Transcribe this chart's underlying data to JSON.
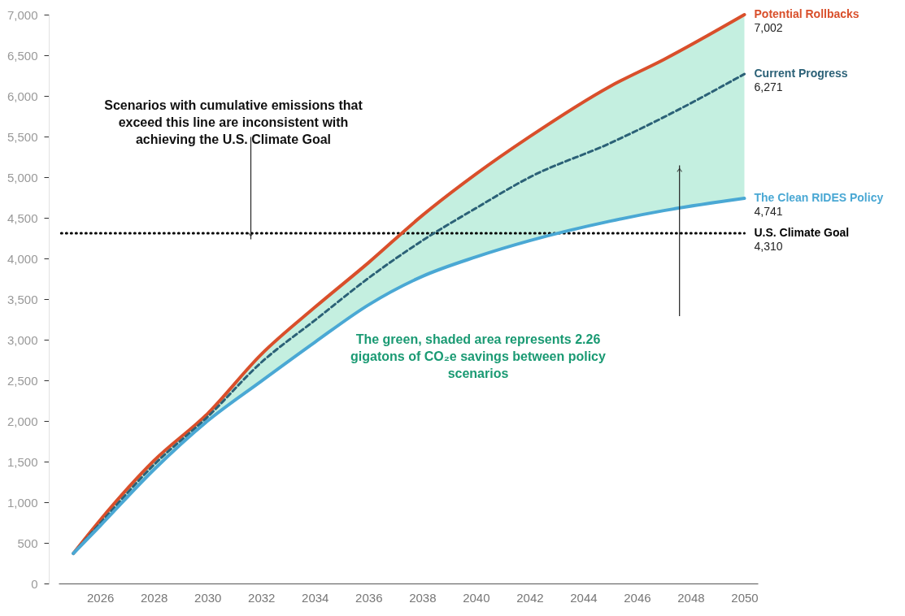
{
  "chart_data": {
    "type": "line",
    "x": [
      2025,
      2026,
      2028,
      2030,
      2032,
      2034,
      2036,
      2038,
      2040,
      2042,
      2045,
      2047,
      2050
    ],
    "series": [
      {
        "name": "Potential Rollbacks",
        "color": "#d94f2b",
        "line_style": "solid",
        "values": [
          370,
          780,
          1510,
          2090,
          2820,
          3400,
          3950,
          4530,
          5040,
          5500,
          6120,
          6450,
          7002
        ],
        "value_labels": [
          null,
          null,
          null,
          null,
          null,
          null,
          null,
          null,
          null,
          null,
          null,
          null,
          "7,002"
        ]
      },
      {
        "name": "Current Progress",
        "color": "#2b6177",
        "line_style": "dashed",
        "values": [
          370,
          740,
          1460,
          2050,
          2720,
          3240,
          3760,
          4220,
          4620,
          5000,
          5420,
          5740,
          6271
        ],
        "value_labels": [
          null,
          null,
          null,
          null,
          null,
          null,
          null,
          null,
          null,
          null,
          null,
          null,
          "6,271"
        ]
      },
      {
        "name": "The Clean RIDES Policy",
        "color": "#4aa8d4",
        "line_style": "solid",
        "values": [
          370,
          710,
          1400,
          2000,
          2490,
          2970,
          3430,
          3780,
          4020,
          4220,
          4460,
          4590,
          4741
        ],
        "value_labels": [
          null,
          null,
          null,
          null,
          null,
          null,
          null,
          null,
          null,
          null,
          null,
          null,
          "4,741"
        ]
      }
    ],
    "xlim": [
      2024.45,
      2050.5
    ],
    "xticks": [
      2026,
      2028,
      2030,
      2032,
      2034,
      2036,
      2038,
      2040,
      2042,
      2044,
      2046,
      2048,
      2050
    ],
    "ylim": [
      0,
      7002
    ],
    "yticks": [
      0,
      500,
      {
        "value": 1000,
        "label": "1,000"
      },
      {
        "value": 1500,
        "label": "1,500"
      },
      {
        "value": 2000,
        "label": "2,000"
      },
      {
        "value": 2500,
        "label": "2,500"
      },
      {
        "value": 3000,
        "label": "3,000"
      },
      {
        "value": 3500,
        "label": "3,500"
      },
      {
        "value": 4000,
        "label": "4,000"
      },
      {
        "value": 4500,
        "label": "4,500"
      },
      {
        "value": 5000,
        "label": "5,000"
      },
      {
        "value": 5500,
        "label": "5,500"
      },
      {
        "value": 6000,
        "label": "6,000"
      },
      {
        "value": 6500,
        "label": "6,500"
      },
      {
        "value": 7000,
        "label": "7,000"
      }
    ],
    "grid": false,
    "legend": false,
    "marker": "none",
    "ref_lines": [
      {
        "axis": "y",
        "value": 4310,
        "label": "U.S. Climate Goal",
        "color": "#000000",
        "line_style": "dotted"
      }
    ],
    "annotations": [
      "Scenarios with cumulative emissions that exceed this line are inconsistent with achieving the U.S. Climate Goal",
      "The green, shaded area represents 2.26 gigatons of CO₂e savings between policy scenarios",
      {
        "text": "4,310",
        "x": 2050,
        "y": 4310
      }
    ]
  }
}
